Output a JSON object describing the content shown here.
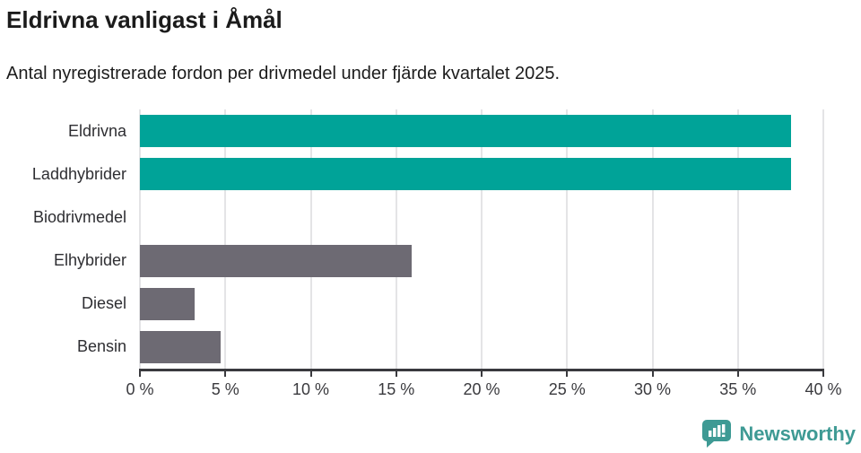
{
  "header": {
    "title": "Eldrivna vanligast i Åmål",
    "subtitle": "Antal nyregistrerade fordon per drivmedel under fjärde kvartalet 2025."
  },
  "chart_data": {
    "type": "bar",
    "orientation": "horizontal",
    "title": "Eldrivna vanligast i Åmål",
    "subtitle": "Antal nyregistrerade fordon per drivmedel under fjärde kvartalet 2025.",
    "categories": [
      "Eldrivna",
      "Laddhybrider",
      "Biodrivmedel",
      "Elhybrider",
      "Diesel",
      "Bensin"
    ],
    "values": [
      38.1,
      38.1,
      0,
      15.9,
      3.2,
      4.7
    ],
    "bar_colors": [
      "#00a398",
      "#00a398",
      "#6d6a73",
      "#6d6a73",
      "#6d6a73",
      "#6d6a73"
    ],
    "xlabel": "",
    "ylabel": "",
    "xlim": [
      0,
      40
    ],
    "x_ticks": [
      0,
      5,
      10,
      15,
      20,
      25,
      30,
      35,
      40
    ],
    "x_tick_suffix": " %",
    "grid": true,
    "legend": false
  },
  "colors": {
    "highlight_bar": "#00a398",
    "default_bar": "#6d6a73",
    "gridline": "#e4e4e6",
    "axis": "#3a3a3e",
    "title_text": "#1b1b1b",
    "label_text": "#2e2e32",
    "brand_teal": "#3e9a94"
  },
  "footer": {
    "brand": "Newsworthy"
  }
}
